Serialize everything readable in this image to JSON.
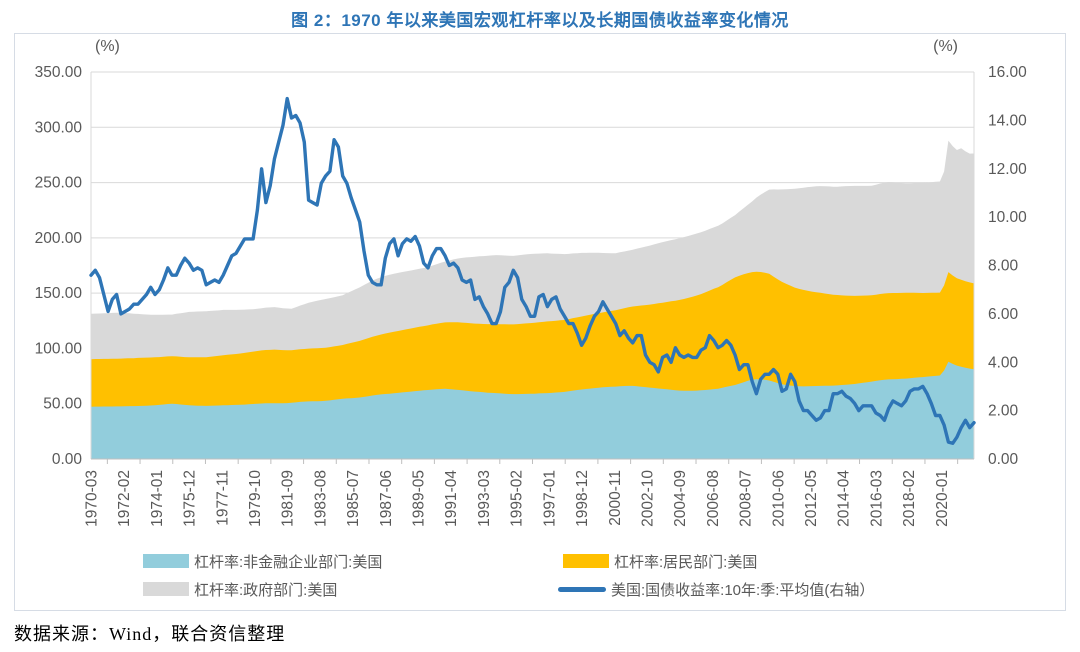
{
  "title": "图 2：1970 年以来美国宏观杠杆率以及长期国债收益率变化情况",
  "source_note": "数据来源：Wind，联合资信整理",
  "chart_data": {
    "type": "area",
    "subtype": "stacked-areas-with-line-overlay",
    "grid": true,
    "legend_position": "bottom",
    "left_axis": {
      "unit": "(%)",
      "min": 0,
      "max": 350,
      "step": 50,
      "tick_labels": [
        "0.00",
        "50.00",
        "100.00",
        "150.00",
        "200.00",
        "250.00",
        "300.00",
        "350.00"
      ]
    },
    "right_axis": {
      "unit": "(%)",
      "min": 0,
      "max": 16,
      "step": 2,
      "tick_labels": [
        "0.00",
        "2.00",
        "4.00",
        "6.00",
        "8.00",
        "10.00",
        "12.00",
        "14.00",
        "16.00"
      ]
    },
    "x": {
      "frequency": "quarterly",
      "start": "1970-03",
      "end": "2021-12",
      "months_between_tick_labels": 23,
      "tick_labels": [
        "1970-03",
        "1972-02",
        "1974-01",
        "1975-12",
        "1977-11",
        "1979-10",
        "1981-09",
        "1983-08",
        "1985-07",
        "1987-06",
        "1989-05",
        "1991-04",
        "1993-03",
        "1995-02",
        "1997-01",
        "1998-12",
        "2000-11",
        "2002-10",
        "2004-09",
        "2006-08",
        "2008-07",
        "2010-06",
        "2012-05",
        "2014-04",
        "2016-03",
        "2018-02",
        "2020-01"
      ]
    },
    "series": [
      {
        "name": "杠杆率:非金融企业部门:美国",
        "type": "area-stacked",
        "axis": "left",
        "color": "#92CDDC",
        "values": [
          47.3,
          47.4,
          47.4,
          47.5,
          47.5,
          47.5,
          47.6,
          47.6,
          47.7,
          47.8,
          47.8,
          47.9,
          48.0,
          48.2,
          48.4,
          48.6,
          48.9,
          49.3,
          49.7,
          50.0,
          49.7,
          49.3,
          48.9,
          48.6,
          48.4,
          48.2,
          48.1,
          48.0,
          48.1,
          48.3,
          48.4,
          48.6,
          48.7,
          48.8,
          48.9,
          49.0,
          49.2,
          49.5,
          49.7,
          50.0,
          50.2,
          50.4,
          50.4,
          50.5,
          50.5,
          50.5,
          50.6,
          50.8,
          51.2,
          51.6,
          51.9,
          52.1,
          52.2,
          52.3,
          52.4,
          52.6,
          53.0,
          53.5,
          54.0,
          54.5,
          54.8,
          55.0,
          55.3,
          55.6,
          56.2,
          56.8,
          57.4,
          58.0,
          58.4,
          58.8,
          59.1,
          59.4,
          59.8,
          60.2,
          60.6,
          61.0,
          61.4,
          61.8,
          62.1,
          62.4,
          62.8,
          63.1,
          63.3,
          63.5,
          63.2,
          62.9,
          62.5,
          62.1,
          61.7,
          61.3,
          61.0,
          60.7,
          60.3,
          60.0,
          59.8,
          59.6,
          59.3,
          59.0,
          58.8,
          58.7,
          58.7,
          58.8,
          58.9,
          59.0,
          59.1,
          59.3,
          59.4,
          59.6,
          59.8,
          60.1,
          60.4,
          60.7,
          61.3,
          61.9,
          62.4,
          62.9,
          63.3,
          63.7,
          64.1,
          64.5,
          64.8,
          65.1,
          65.3,
          65.5,
          65.8,
          66.0,
          66.1,
          66.1,
          65.8,
          65.4,
          65.0,
          64.6,
          64.2,
          63.8,
          63.4,
          63.0,
          62.6,
          62.2,
          61.9,
          61.7,
          61.7,
          61.8,
          61.9,
          62.1,
          62.4,
          62.8,
          63.2,
          63.6,
          64.4,
          65.3,
          66.1,
          66.9,
          68.2,
          69.5,
          70.7,
          71.8,
          72.2,
          72.0,
          71.6,
          71.0,
          69.8,
          68.6,
          67.6,
          66.9,
          66.4,
          66.0,
          65.8,
          65.7,
          65.8,
          65.9,
          66.0,
          66.1,
          66.2,
          66.3,
          66.4,
          66.6,
          66.9,
          67.2,
          67.5,
          67.8,
          68.4,
          69.0,
          69.5,
          70.0,
          70.6,
          71.2,
          71.7,
          72.0,
          72.2,
          72.3,
          72.5,
          72.7,
          73.1,
          73.5,
          73.8,
          74.1,
          74.5,
          74.9,
          75.2,
          75.5,
          80.0,
          88.0,
          86.0,
          84.5,
          83.5,
          82.5,
          81.8,
          81.2
        ]
      },
      {
        "name": "杠杆率:居民部门:美国",
        "type": "area-stacked",
        "axis": "left",
        "color": "#FFC000",
        "values": [
          43.0,
          43.0,
          43.0,
          43.0,
          43.0,
          43.1,
          43.1,
          43.2,
          43.3,
          43.4,
          43.4,
          43.5,
          43.5,
          43.5,
          43.4,
          43.4,
          43.3,
          43.2,
          43.1,
          43.0,
          43.1,
          43.2,
          43.3,
          43.4,
          43.6,
          43.8,
          43.9,
          44.1,
          44.4,
          44.7,
          44.9,
          45.2,
          45.5,
          45.8,
          46.1,
          46.4,
          46.8,
          47.1,
          47.4,
          47.7,
          48.0,
          48.2,
          48.3,
          48.4,
          48.2,
          48.0,
          47.8,
          47.6,
          47.6,
          47.6,
          47.6,
          47.7,
          47.8,
          47.9,
          48.0,
          48.1,
          48.2,
          48.3,
          48.4,
          48.6,
          49.3,
          50.0,
          50.6,
          51.2,
          51.9,
          52.5,
          53.1,
          53.6,
          54.2,
          54.7,
          55.2,
          55.6,
          56.0,
          56.4,
          56.7,
          57.0,
          57.4,
          57.8,
          58.1,
          58.4,
          58.9,
          59.3,
          59.7,
          60.0,
          60.4,
          60.8,
          61.1,
          61.3,
          61.4,
          61.5,
          61.5,
          61.6,
          61.8,
          62.0,
          62.2,
          62.4,
          62.6,
          62.8,
          62.9,
          63.0,
          63.3,
          63.5,
          63.7,
          63.9,
          64.2,
          64.4,
          64.6,
          64.8,
          64.9,
          64.9,
          65.0,
          65.0,
          65.2,
          65.5,
          65.7,
          66.0,
          66.4,
          66.8,
          67.1,
          67.4,
          67.8,
          68.2,
          68.6,
          69.0,
          69.7,
          70.4,
          71.1,
          71.8,
          72.6,
          73.4,
          74.2,
          75.0,
          76.0,
          77.0,
          78.0,
          79.0,
          80.0,
          81.0,
          82.0,
          83.0,
          84.0,
          85.0,
          86.0,
          87.0,
          88.3,
          89.5,
          90.7,
          91.8,
          93.0,
          94.5,
          96.0,
          97.3,
          97.6,
          97.6,
          97.4,
          97.2,
          97.2,
          97.1,
          96.9,
          96.6,
          95.2,
          93.8,
          92.6,
          91.5,
          90.2,
          89.0,
          88.0,
          87.2,
          86.3,
          85.5,
          84.8,
          84.2,
          83.5,
          82.8,
          82.2,
          81.7,
          81.1,
          80.6,
          80.1,
          79.7,
          79.2,
          78.8,
          78.4,
          78.1,
          78.0,
          78.0,
          78.0,
          78.0,
          77.9,
          77.8,
          77.7,
          77.6,
          77.2,
          76.8,
          76.4,
          76.0,
          75.7,
          75.4,
          75.2,
          75.0,
          77.0,
          81.0,
          80.0,
          79.0,
          78.6,
          78.2,
          77.9,
          77.6
        ]
      },
      {
        "name": "杠杆率:政府部门:美国",
        "type": "area-stacked",
        "axis": "left",
        "color": "#D9D9D9",
        "values": [
          41.0,
          41.1,
          41.2,
          41.3,
          41.4,
          41.5,
          41.5,
          41.4,
          41.0,
          40.6,
          40.2,
          39.8,
          39.4,
          39.0,
          38.7,
          38.5,
          38.2,
          38.0,
          37.8,
          37.6,
          38.5,
          39.4,
          40.2,
          41.0,
          41.2,
          41.4,
          41.5,
          41.5,
          41.4,
          41.2,
          41.1,
          41.0,
          40.6,
          40.2,
          39.8,
          39.5,
          39.1,
          38.7,
          38.4,
          38.1,
          38.2,
          38.3,
          38.4,
          38.5,
          38.2,
          37.9,
          37.7,
          37.5,
          38.5,
          39.5,
          40.5,
          41.5,
          42.2,
          42.9,
          43.5,
          44.0,
          44.3,
          44.5,
          44.8,
          45.0,
          45.9,
          46.8,
          47.6,
          48.4,
          49.3,
          50.1,
          50.9,
          51.5,
          51.8,
          52.1,
          52.3,
          52.5,
          52.5,
          52.5,
          52.5,
          52.5,
          52.5,
          52.5,
          52.5,
          52.5,
          53.2,
          53.8,
          54.4,
          55.0,
          55.9,
          56.8,
          57.7,
          58.5,
          59.2,
          59.8,
          60.4,
          61.0,
          61.4,
          61.8,
          62.1,
          62.4,
          62.3,
          62.2,
          62.1,
          62.0,
          62.1,
          62.3,
          62.4,
          62.5,
          62.3,
          62.1,
          61.9,
          61.7,
          61.1,
          60.6,
          60.1,
          59.6,
          59.0,
          58.5,
          58.0,
          57.5,
          56.7,
          56.0,
          55.3,
          54.6,
          53.7,
          52.9,
          52.2,
          51.6,
          51.4,
          51.3,
          51.3,
          51.4,
          51.9,
          52.4,
          52.9,
          53.4,
          53.9,
          54.4,
          54.8,
          55.1,
          55.4,
          55.6,
          55.8,
          56.0,
          56.0,
          56.0,
          56.0,
          56.0,
          55.8,
          55.7,
          55.6,
          55.5,
          55.6,
          55.8,
          56.1,
          56.4,
          58.0,
          59.8,
          61.8,
          64.0,
          67.0,
          70.0,
          73.0,
          76.0,
          78.8,
          81.3,
          83.6,
          85.5,
          87.6,
          89.5,
          91.1,
          92.5,
          93.8,
          94.9,
          95.8,
          96.5,
          97.0,
          97.4,
          97.7,
          98.0,
          98.5,
          99.0,
          99.3,
          99.5,
          99.4,
          99.2,
          99.1,
          99.0,
          99.5,
          100.0,
          100.3,
          100.5,
          100.2,
          99.8,
          99.4,
          99.0,
          99.1,
          99.3,
          99.4,
          99.5,
          99.8,
          100.0,
          100.3,
          100.5,
          103.0,
          119.0,
          117.0,
          116.0,
          119.0,
          117.5,
          116.5,
          117.5
        ]
      },
      {
        "name": "美国:国债收益率:10年:季:平均值(右轴）",
        "type": "line",
        "axis": "right",
        "color": "#2E75B6",
        "values": [
          7.6,
          7.8,
          7.5,
          6.8,
          6.1,
          6.6,
          6.8,
          6.0,
          6.1,
          6.2,
          6.4,
          6.4,
          6.6,
          6.8,
          7.1,
          6.8,
          7.0,
          7.4,
          7.9,
          7.6,
          7.6,
          8.0,
          8.3,
          8.1,
          7.8,
          7.9,
          7.8,
          7.2,
          7.3,
          7.4,
          7.3,
          7.6,
          8.0,
          8.4,
          8.5,
          8.8,
          9.1,
          9.1,
          9.1,
          10.3,
          12.0,
          10.6,
          11.3,
          12.4,
          13.1,
          13.8,
          14.9,
          14.1,
          14.2,
          13.9,
          13.1,
          10.7,
          10.6,
          10.5,
          11.4,
          11.7,
          11.9,
          13.2,
          12.9,
          11.7,
          11.4,
          10.8,
          10.3,
          9.8,
          8.6,
          7.6,
          7.3,
          7.2,
          7.2,
          8.3,
          8.9,
          9.1,
          8.4,
          8.9,
          9.1,
          9.0,
          9.2,
          8.8,
          8.1,
          7.9,
          8.4,
          8.7,
          8.7,
          8.4,
          8.0,
          8.1,
          7.9,
          7.4,
          7.3,
          7.4,
          6.6,
          6.7,
          6.3,
          6.0,
          5.6,
          5.6,
          6.1,
          7.1,
          7.3,
          7.8,
          7.5,
          6.6,
          6.3,
          5.9,
          5.9,
          6.7,
          6.8,
          6.3,
          6.6,
          6.7,
          6.2,
          5.9,
          5.6,
          5.6,
          5.2,
          4.7,
          5.0,
          5.5,
          5.9,
          6.1,
          6.5,
          6.2,
          5.9,
          5.6,
          5.1,
          5.3,
          5.0,
          4.8,
          5.1,
          5.1,
          4.3,
          4.0,
          3.9,
          3.6,
          4.2,
          4.3,
          4.0,
          4.6,
          4.3,
          4.2,
          4.3,
          4.2,
          4.2,
          4.5,
          4.6,
          5.1,
          4.9,
          4.6,
          4.7,
          4.9,
          4.7,
          4.3,
          3.7,
          3.9,
          3.9,
          3.2,
          2.7,
          3.3,
          3.5,
          3.5,
          3.7,
          3.5,
          2.8,
          2.9,
          3.5,
          3.2,
          2.4,
          2.0,
          2.0,
          1.8,
          1.6,
          1.7,
          2.0,
          2.0,
          2.7,
          2.7,
          2.8,
          2.6,
          2.5,
          2.3,
          2.0,
          2.2,
          2.2,
          2.2,
          1.9,
          1.8,
          1.6,
          2.1,
          2.4,
          2.3,
          2.2,
          2.4,
          2.8,
          2.9,
          2.9,
          3.0,
          2.7,
          2.3,
          1.8,
          1.8,
          1.4,
          0.7,
          0.65,
          0.9,
          1.3,
          1.6,
          1.3,
          1.5
        ]
      }
    ]
  }
}
